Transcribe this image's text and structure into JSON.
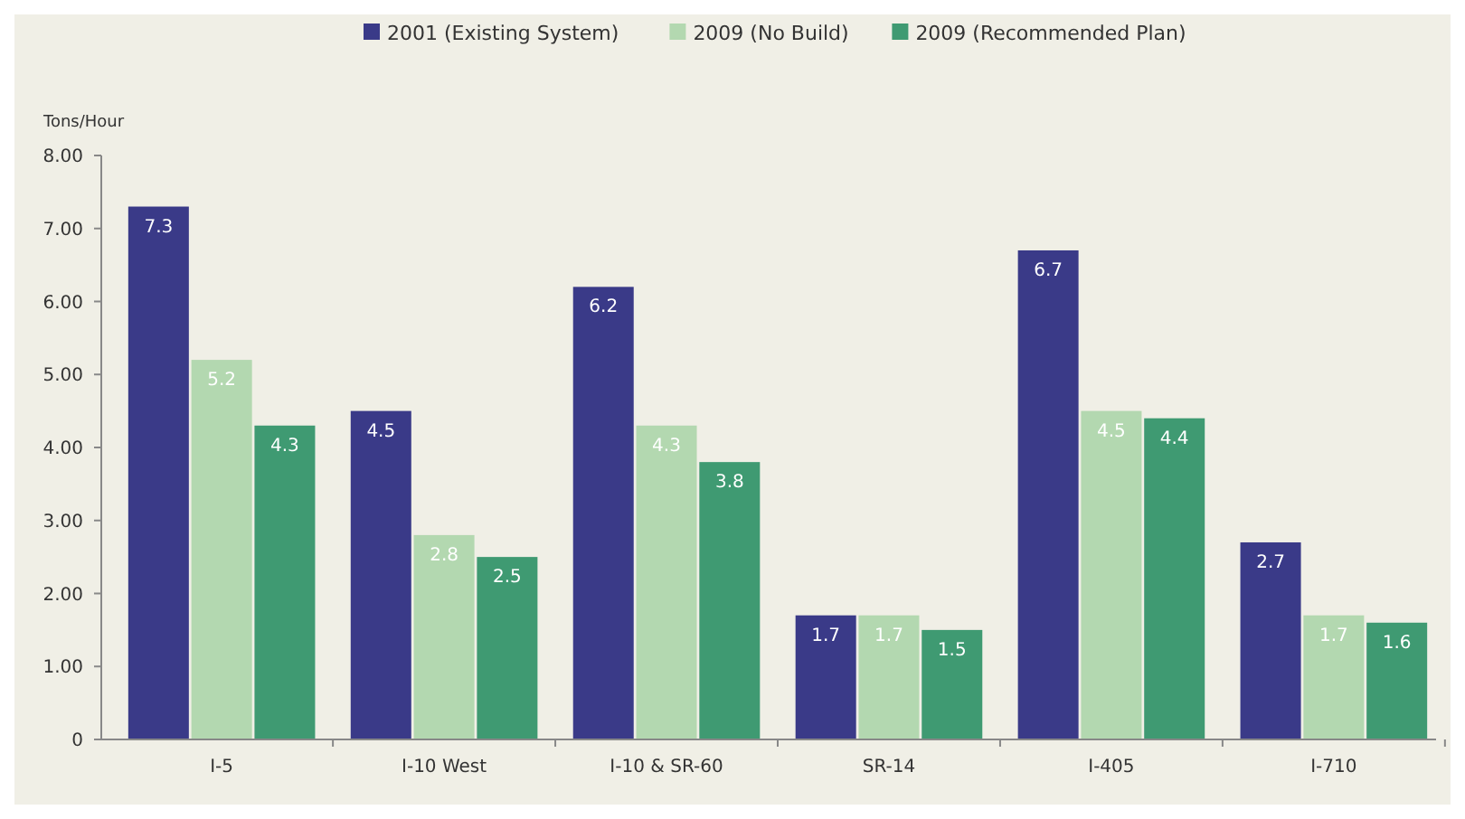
{
  "chart_data": {
    "type": "bar",
    "ylabel": "Tons/Hour",
    "categories": [
      "I-5",
      "I-10 West",
      "I-10 & SR-60",
      "SR-14",
      "I-405",
      "I-710"
    ],
    "series": [
      {
        "name": "2001 (Existing System)",
        "color": "#3a3a88",
        "values": [
          7.3,
          4.5,
          6.2,
          1.7,
          6.7,
          2.7
        ]
      },
      {
        "name": "2009 (No Build)",
        "color": "#b3d8b0",
        "values": [
          5.2,
          2.8,
          4.3,
          1.7,
          4.5,
          1.7
        ]
      },
      {
        "name": "2009 (Recommended Plan)",
        "color": "#3f9a72",
        "values": [
          4.3,
          2.5,
          3.8,
          1.5,
          4.4,
          1.6
        ]
      }
    ],
    "ylim": [
      0,
      8
    ],
    "yticks": [
      0,
      {
        "value": 1,
        "label": "1.00"
      },
      {
        "value": 2,
        "label": "2.00"
      },
      {
        "value": 3,
        "label": "3.00"
      },
      {
        "value": 4,
        "label": "4.00"
      },
      {
        "value": 5,
        "label": "5.00"
      },
      {
        "value": 6,
        "label": "6.00"
      },
      {
        "value": 7,
        "label": "7.00"
      },
      {
        "value": 8,
        "label": "8.00"
      }
    ],
    "data_labels": true,
    "legend": "top",
    "grid": false
  }
}
